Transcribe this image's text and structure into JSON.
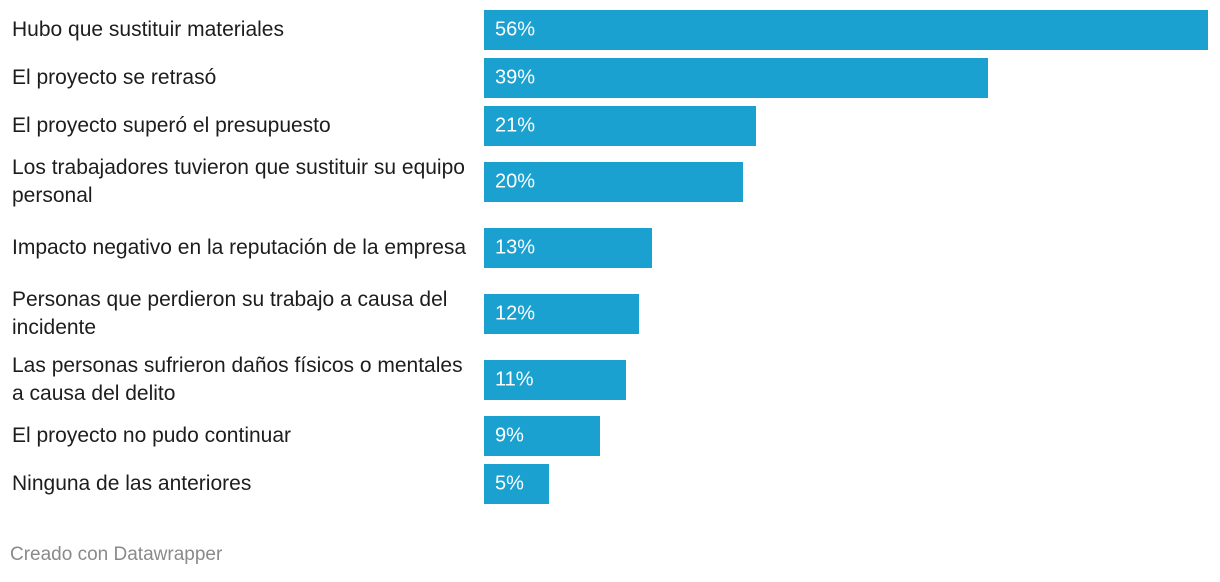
{
  "chart_data": {
    "type": "bar",
    "orientation": "horizontal",
    "categories": [
      "Hubo que sustituir materiales",
      "El proyecto se retrasó",
      "El proyecto superó el presupuesto",
      "Los trabajadores tuvieron que sustituir su equipo personal",
      "Impacto negativo en la reputación de la empresa",
      "Personas que perdieron su trabajo a causa del incidente",
      "Las personas sufrieron daños físicos o mentales a causa del delito",
      "El proyecto no pudo continuar",
      "Ninguna de las anteriores"
    ],
    "values": [
      56,
      39,
      21,
      20,
      13,
      12,
      11,
      9,
      5
    ],
    "value_labels": [
      "56%",
      "39%",
      "21%",
      "20%",
      "13%",
      "12%",
      "11%",
      "9%",
      "5%"
    ],
    "xlim": [
      0,
      56
    ],
    "title": "",
    "xlabel": "",
    "ylabel": "",
    "grid": false,
    "colors": {
      "bar": "#1aa1d0",
      "value_text": "#ffffff",
      "label_text": "#1d1d1d",
      "footer_text": "#8a8a8a"
    }
  },
  "footer": {
    "credit": "Creado con Datawrapper"
  }
}
